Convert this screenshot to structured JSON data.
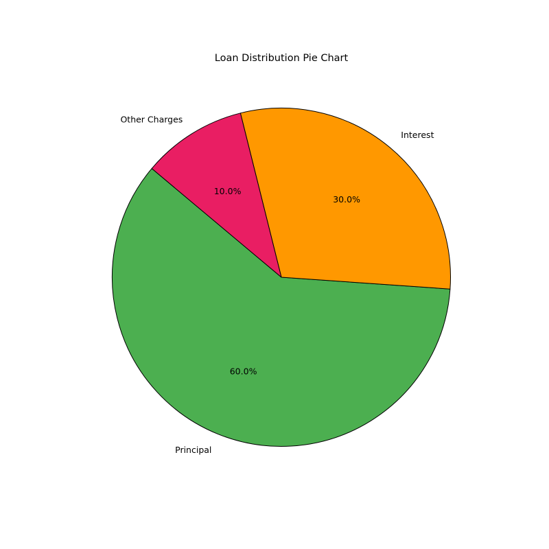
{
  "chart_data": {
    "type": "pie",
    "title": "Loan Distribution Pie Chart",
    "categories": [
      "Principal",
      "Interest",
      "Other Charges"
    ],
    "values": [
      60,
      30,
      10
    ],
    "percent_labels": [
      "60.0%",
      "30.0%",
      "10.0%"
    ],
    "colors": [
      "#4caf50",
      "#ff9800",
      "#e91e63"
    ],
    "edge_color": "#000000",
    "start_angle_deg": 140,
    "direction": "counterclockwise",
    "legend": "none"
  }
}
